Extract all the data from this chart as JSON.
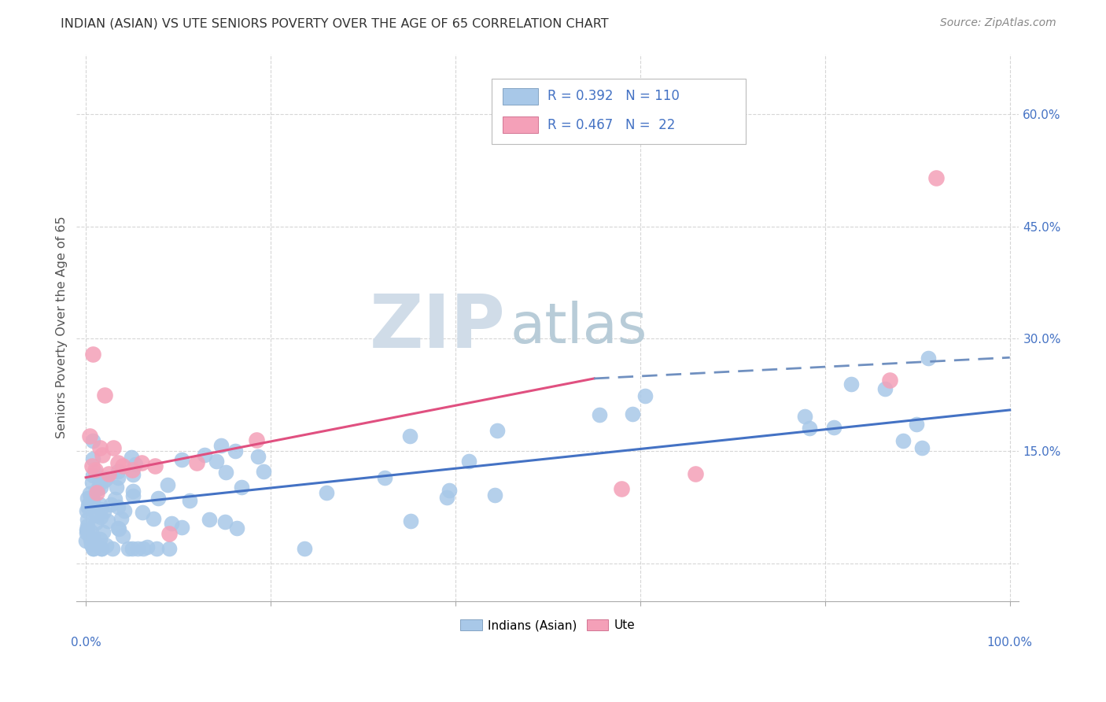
{
  "title": "INDIAN (ASIAN) VS UTE SENIORS POVERTY OVER THE AGE OF 65 CORRELATION CHART",
  "source": "Source: ZipAtlas.com",
  "ylabel": "Seniors Poverty Over the Age of 65",
  "xlim": [
    -0.01,
    1.01
  ],
  "ylim": [
    -0.05,
    0.68
  ],
  "asian_color": "#a8c8e8",
  "ute_color": "#f4a0b8",
  "asian_line_color": "#4472c4",
  "ute_line_color": "#e05080",
  "ute_dash_color": "#7090c0",
  "background_color": "#ffffff",
  "grid_color": "#cccccc",
  "title_color": "#333333",
  "source_color": "#888888",
  "axis_label_color": "#555555",
  "tick_color_blue": "#4472c4",
  "watermark_zip_color": "#d0dce8",
  "watermark_atlas_color": "#b8ccd8",
  "legend_r_asian": "R = 0.392",
  "legend_n_asian": "N = 110",
  "legend_r_ute": "R = 0.467",
  "legend_n_ute": "N =  22",
  "ytick_positions": [
    0.0,
    0.15,
    0.3,
    0.45,
    0.6
  ],
  "ytick_labels": [
    "",
    "15.0%",
    "30.0%",
    "45.0%",
    "60.0%"
  ],
  "xtick_positions": [
    0.0,
    0.2,
    0.4,
    0.6,
    0.8,
    1.0
  ],
  "asian_trend": [
    0.0,
    1.0,
    0.075,
    0.205
  ],
  "ute_solid": [
    0.0,
    0.55,
    0.115,
    0.247
  ],
  "ute_dash": [
    0.55,
    1.0,
    0.247,
    0.275
  ]
}
